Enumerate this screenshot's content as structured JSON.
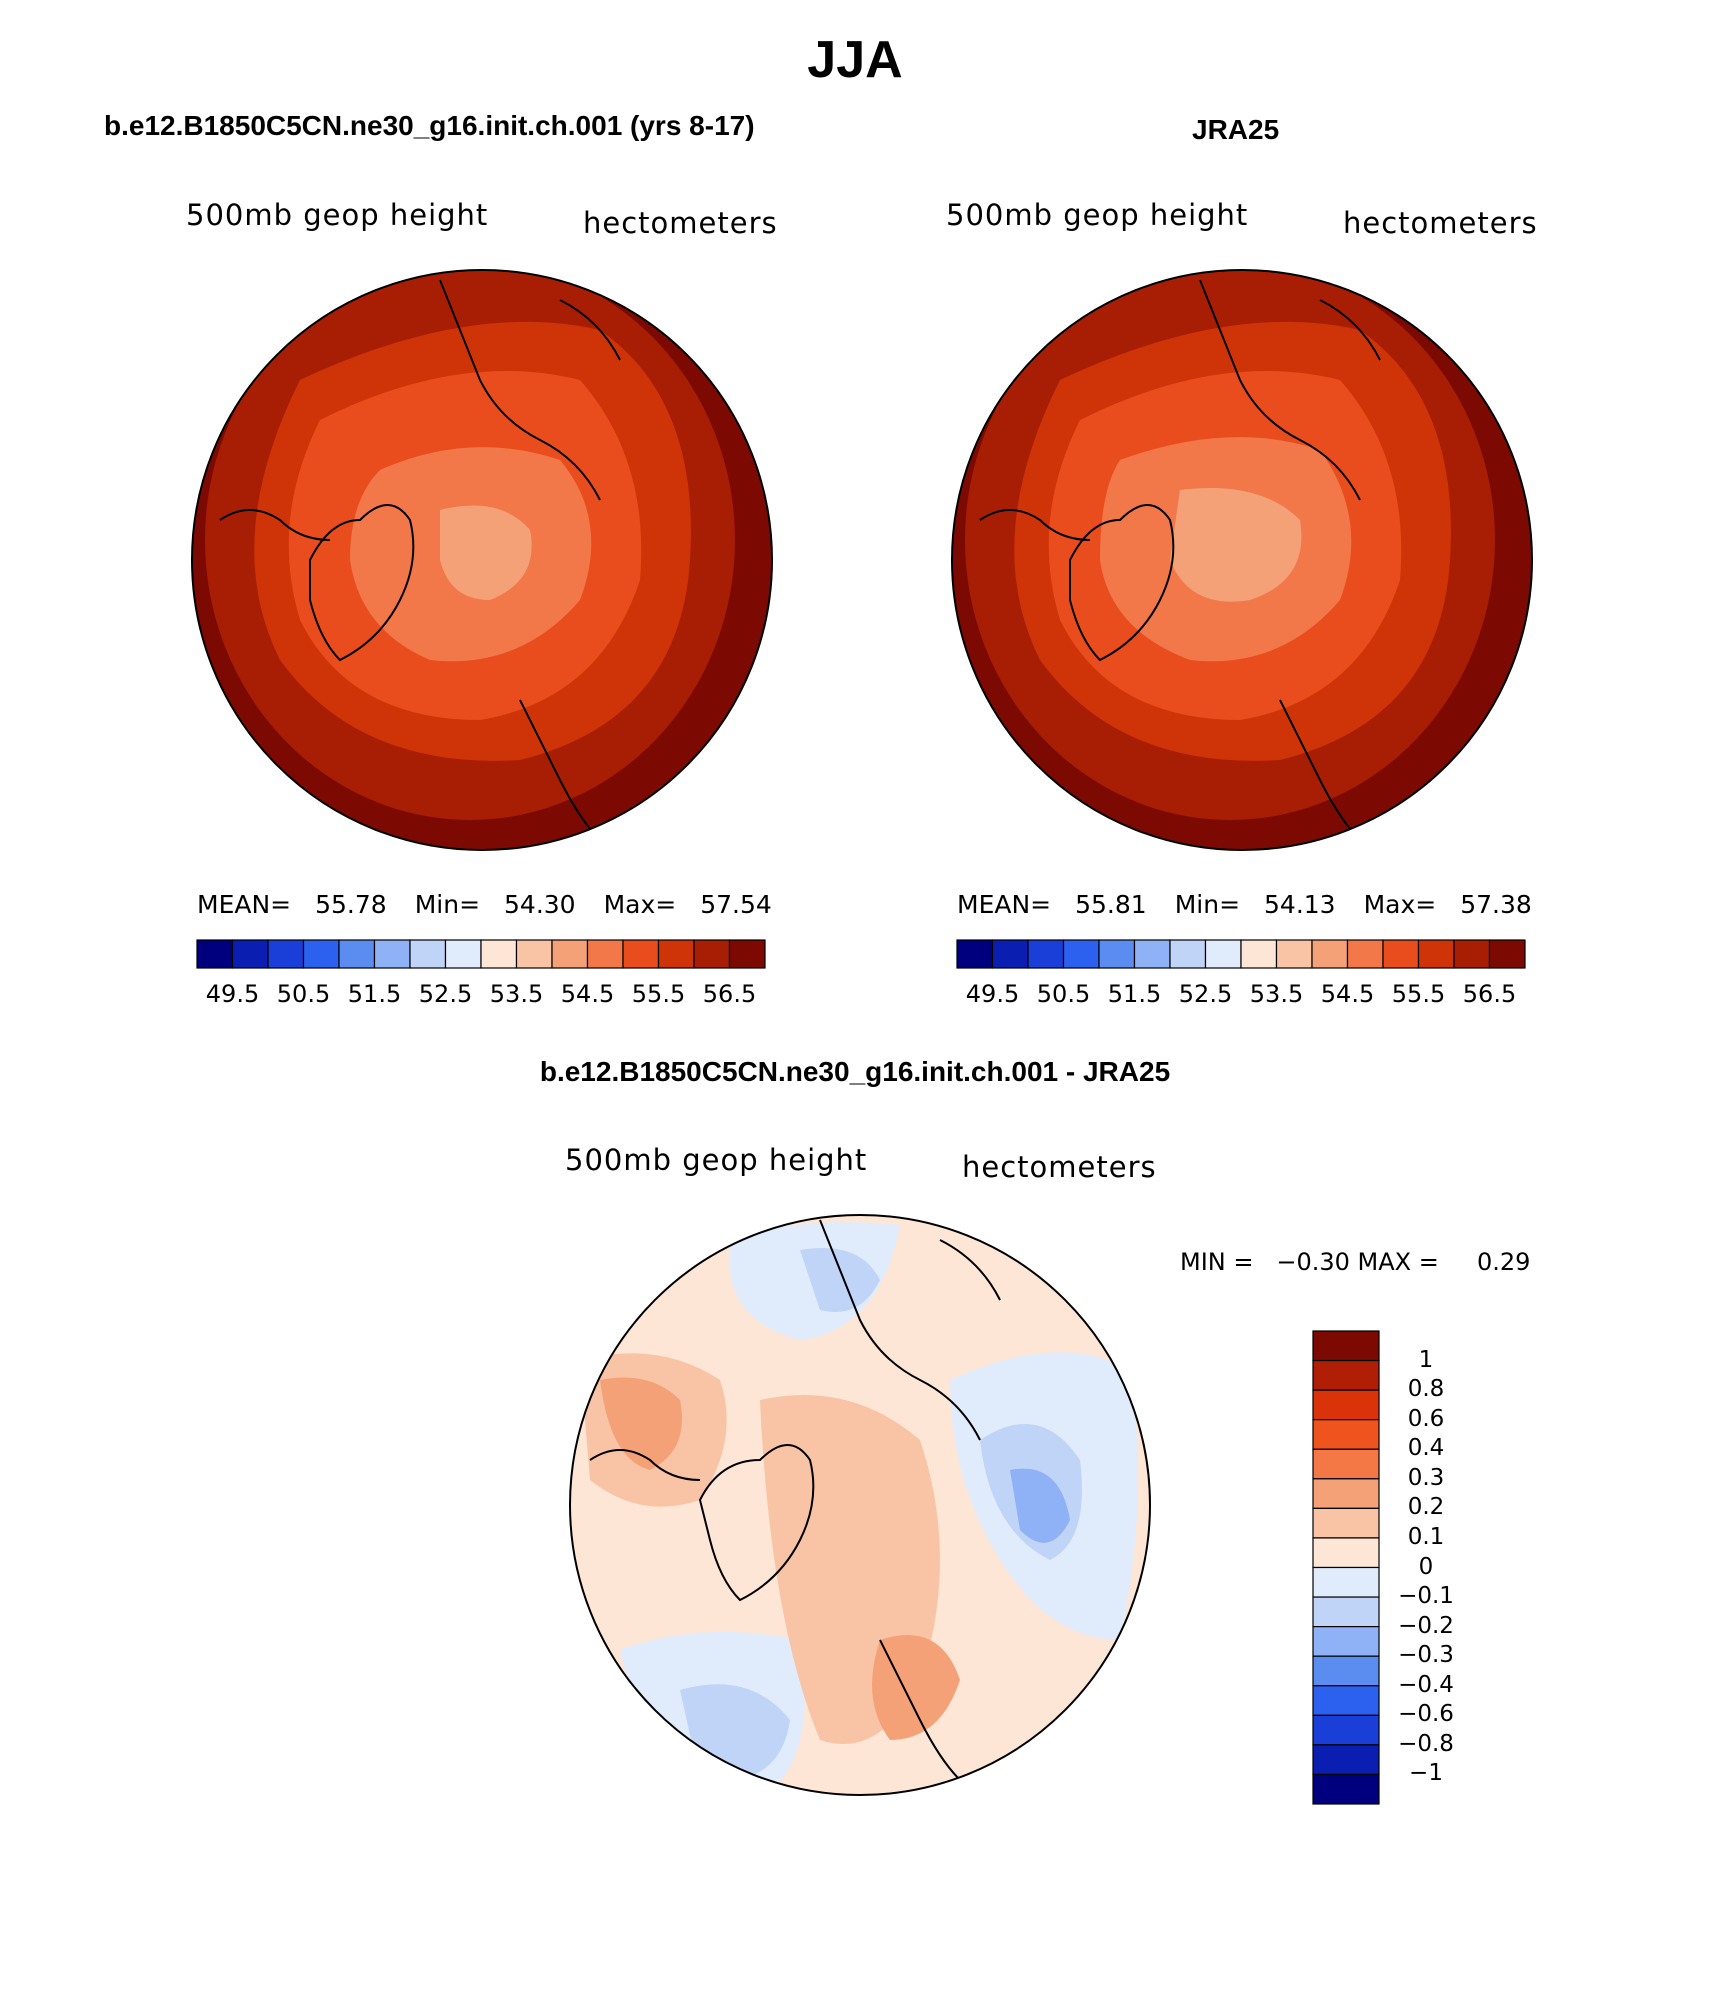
{
  "season_title": "JJA",
  "panels": [
    {
      "id": "model",
      "title": "b.e12.B1850C5CN.ne30_g16.init.ch.001 (yrs 8-17)",
      "variable": "500mb geop height",
      "units": "hectometers",
      "stats": {
        "mean_label": "MEAN=",
        "mean": "55.78",
        "min_label": "Min=",
        "min": "54.30",
        "max_label": "Max=",
        "max": "57.54"
      }
    },
    {
      "id": "obs",
      "title": "JRA25",
      "variable": "500mb geop height",
      "units": "hectometers",
      "stats": {
        "mean_label": "MEAN=",
        "mean": "55.81",
        "min_label": "Min=",
        "min": "54.13",
        "max_label": "Max=",
        "max": "57.38"
      }
    }
  ],
  "absolute_colorbar": {
    "colors": [
      "#00007f",
      "#0a1fb2",
      "#1a3fd9",
      "#2c60ee",
      "#5b8cf0",
      "#8fb1f5",
      "#bfd4f7",
      "#e0ecfb",
      "#fde6d6",
      "#f9c4a6",
      "#f5a178",
      "#f2784a",
      "#ea4d1d",
      "#cf3409",
      "#a81e05",
      "#7c0a02"
    ],
    "labels": [
      "49.5",
      "50.5",
      "51.5",
      "52.5",
      "53.5",
      "54.5",
      "55.5",
      "56.5"
    ]
  },
  "difference_panel": {
    "title": "b.e12.B1850C5CN.ne30_g16.init.ch.001 - JRA25",
    "variable": "500mb geop height",
    "units": "hectometers",
    "stats_text": "MIN =   −0.30 MAX =     0.29"
  },
  "difference_colorbar": {
    "colors_top_to_bottom": [
      "#7c0a02",
      "#b11e06",
      "#db3309",
      "#f0541e",
      "#f37846",
      "#f5a178",
      "#f9c4a6",
      "#fde6d6",
      "#e0ecfb",
      "#bfd4f7",
      "#8fb1f5",
      "#5b8cf0",
      "#2c60ee",
      "#1a3fd9",
      "#0a1fb2",
      "#00007f"
    ],
    "labels_top_to_bottom": [
      "1",
      "0.8",
      "0.6",
      "0.4",
      "0.3",
      "0.2",
      "0.1",
      "0",
      "−0.1",
      "−0.2",
      "−0.3",
      "−0.4",
      "−0.6",
      "−0.8",
      "−1"
    ]
  },
  "map_colors": {
    "ring_outer": "#7c0a02",
    "ring_2": "#a81e05",
    "ring_3": "#cf3409",
    "ring_4": "#ea4d1d",
    "ring_5": "#f2784a",
    "ring_6": "#f5a178",
    "diff_base": "#fde6d6",
    "diff_pos": "#f9c4a6",
    "diff_pos2": "#f5a178",
    "diff_neg": "#e0ecfb",
    "diff_neg2": "#bfd4f7",
    "diff_neg3": "#8fb1f5"
  }
}
